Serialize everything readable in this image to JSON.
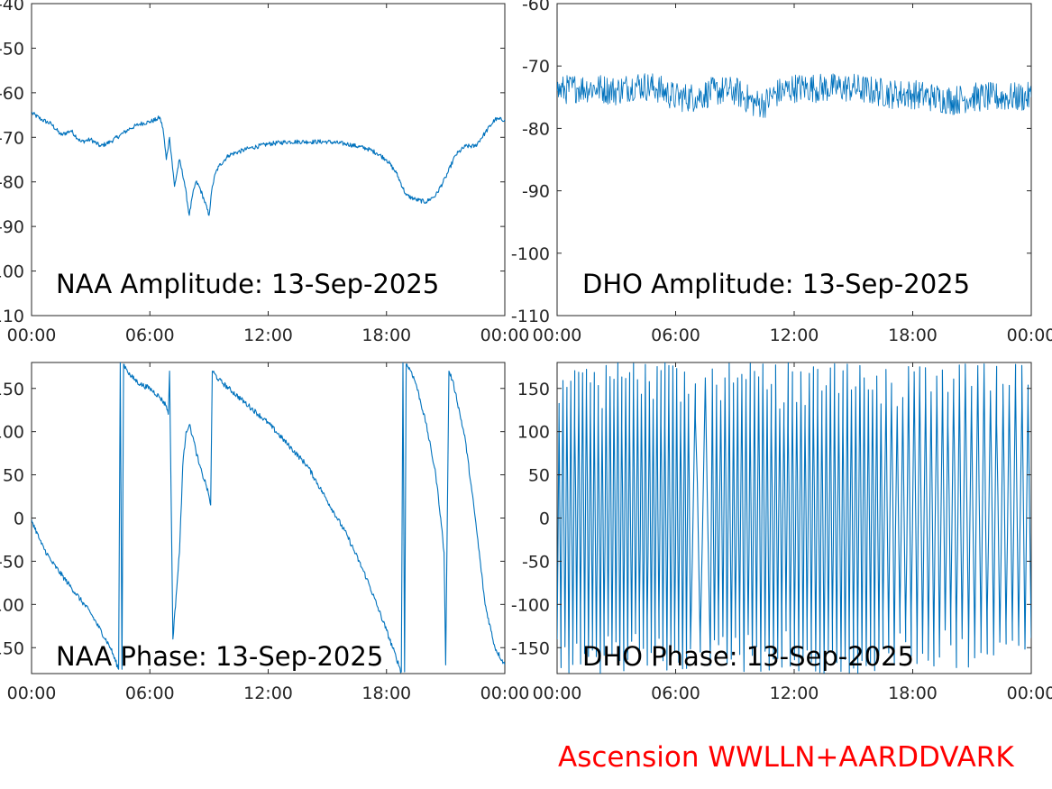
{
  "line_color": "#0072bd",
  "credit_color": "#ff0000",
  "credit": "Ascension WWLLN+AARDDVARK",
  "chart_data": [
    {
      "type": "line",
      "title": "NAA Amplitude: 13-Sep-2025",
      "xlabel": "",
      "ylabel": "",
      "xlim": [
        "00:00",
        "24:00"
      ],
      "ylim": [
        -110,
        -40
      ],
      "xtick_labels": [
        "00:00",
        "06:00",
        "12:00",
        "18:00",
        "00:00"
      ],
      "ytick_values": [
        -110,
        -100,
        -90,
        -80,
        -70,
        -60,
        -50,
        -40
      ],
      "ytick_labels": [
        "-110",
        "-100",
        "-90",
        "-80",
        "-70",
        "-60",
        "-50",
        "-40"
      ],
      "series": [
        {
          "noise": 0.5,
          "x": [
            "00:00",
            "00:30",
            "01:00",
            "01:30",
            "02:00",
            "02:30",
            "03:00",
            "03:30",
            "04:00",
            "04:30",
            "05:00",
            "05:30",
            "06:00",
            "06:20",
            "06:30",
            "06:40",
            "06:50",
            "07:00",
            "07:15",
            "07:30",
            "07:45",
            "08:00",
            "08:10",
            "08:20",
            "08:30",
            "08:45",
            "09:00",
            "09:10",
            "09:20",
            "09:30",
            "10:00",
            "11:00",
            "12:00",
            "13:00",
            "14:00",
            "15:00",
            "16:00",
            "17:00",
            "17:30",
            "18:00",
            "18:30",
            "19:00",
            "19:30",
            "20:00",
            "20:30",
            "21:00",
            "21:30",
            "22:00",
            "22:30",
            "23:00",
            "23:30",
            "24:00"
          ],
          "y": [
            -64.5,
            -66,
            -67,
            -69.5,
            -68.5,
            -71,
            -70.5,
            -72,
            -71,
            -69.5,
            -68,
            -67,
            -66.5,
            -66,
            -65.5,
            -68,
            -75,
            -70,
            -81,
            -75,
            -80,
            -87.5,
            -83,
            -80,
            -81,
            -84,
            -87.5,
            -81,
            -78,
            -76.5,
            -74,
            -72.5,
            -71.5,
            -71,
            -71,
            -71,
            -71.5,
            -72.5,
            -73.5,
            -75,
            -78,
            -83,
            -84,
            -84.5,
            -83,
            -79,
            -74,
            -72,
            -72,
            -69,
            -66,
            -66
          ]
        }
      ]
    },
    {
      "type": "line",
      "title": "DHO Amplitude: 13-Sep-2025",
      "xlabel": "",
      "ylabel": "",
      "xlim": [
        "00:00",
        "24:00"
      ],
      "ylim": [
        -110,
        -60
      ],
      "xtick_labels": [
        "00:00",
        "06:00",
        "12:00",
        "18:00",
        "00:00"
      ],
      "ytick_values": [
        -110,
        -100,
        -90,
        -80,
        -70,
        -60
      ],
      "ytick_labels": [
        "-110",
        "-100",
        "-90",
        "-80",
        "-70",
        "-60"
      ],
      "series": [
        {
          "noise": 2.4,
          "x": [
            "00:00",
            "01:00",
            "02:00",
            "03:00",
            "04:00",
            "05:00",
            "06:00",
            "07:00",
            "08:00",
            "09:00",
            "10:00",
            "10:30",
            "11:00",
            "12:00",
            "13:00",
            "14:00",
            "15:00",
            "16:00",
            "17:00",
            "18:00",
            "19:00",
            "20:00",
            "21:00",
            "22:00",
            "23:00",
            "24:00"
          ],
          "y": [
            -74,
            -73.5,
            -73.5,
            -74,
            -73,
            -73.5,
            -75,
            -75,
            -74,
            -74,
            -76,
            -76,
            -74.5,
            -73.5,
            -73.5,
            -73.5,
            -73.5,
            -74,
            -74.5,
            -74.5,
            -75,
            -75.5,
            -75,
            -75,
            -75,
            -75
          ]
        }
      ]
    },
    {
      "type": "line",
      "title": "NAA Phase: 13-Sep-2025",
      "xlabel": "",
      "ylabel": "",
      "xlim": [
        "00:00",
        "24:00"
      ],
      "ylim": [
        -180,
        180
      ],
      "xtick_labels": [
        "00:00",
        "06:00",
        "12:00",
        "18:00",
        "00:00"
      ],
      "ytick_values": [
        -150,
        -100,
        -50,
        0,
        50,
        100,
        150
      ],
      "ytick_labels": [
        "-150",
        "-100",
        "-50",
        "0",
        "50",
        "100",
        "150"
      ],
      "series": [
        {
          "noise": 3,
          "x": [
            "00:00",
            "00:30",
            "01:00",
            "02:00",
            "03:00",
            "04:00",
            "04:25",
            "04:30",
            "04:35",
            "04:40",
            "04:50",
            "05:00",
            "05:30",
            "06:00",
            "06:30",
            "06:50",
            "06:56",
            "07:00",
            "07:10",
            "07:30",
            "07:40",
            "07:50",
            "08:00",
            "08:10",
            "08:20",
            "08:30",
            "08:40",
            "08:50",
            "09:00",
            "09:05",
            "09:10",
            "09:30",
            "10:00",
            "11:00",
            "12:00",
            "13:00",
            "14:00",
            "15:00",
            "16:00",
            "17:00",
            "18:00",
            "18:45",
            "18:50",
            "18:55",
            "19:00",
            "19:15",
            "19:30",
            "20:00",
            "20:30",
            "20:45",
            "20:55",
            "21:00",
            "21:10",
            "21:20",
            "21:30",
            "22:00",
            "22:30",
            "23:00",
            "23:30",
            "24:00"
          ],
          "y": [
            -2,
            -30,
            -50,
            -80,
            -110,
            -150,
            -175,
            180,
            -175,
            178,
            172,
            165,
            155,
            150,
            140,
            130,
            120,
            170,
            -140,
            -40,
            60,
            100,
            108,
            95,
            78,
            62,
            50,
            40,
            25,
            15,
            170,
            160,
            150,
            130,
            110,
            85,
            60,
            20,
            -20,
            -70,
            -130,
            -178,
            180,
            -178,
            178,
            170,
            155,
            110,
            50,
            0,
            -40,
            -170,
            170,
            160,
            145,
            90,
            0,
            -100,
            -150,
            -170
          ]
        }
      ]
    },
    {
      "type": "line",
      "title": "DHO Phase: 13-Sep-2025",
      "xlabel": "",
      "ylabel": "",
      "xlim": [
        "00:00",
        "24:00"
      ],
      "ylim": [
        -180,
        180
      ],
      "xtick_labels": [
        "00:00",
        "06:00",
        "12:00",
        "18:00",
        "00:00"
      ],
      "ytick_values": [
        -150,
        -100,
        -50,
        0,
        50,
        100,
        150
      ],
      "ytick_labels": [
        "-150",
        "-100",
        "-50",
        "0",
        "50",
        "100",
        "150"
      ],
      "series": [
        {
          "wrap_segments": [
            {
              "x0": "00:00",
              "x1": "06:45",
              "cycles": 68
            },
            {
              "x0": "06:45",
              "x1": "07:45",
              "cycles": 4
            },
            {
              "x0": "07:45",
              "x1": "16:30",
              "cycles": 82
            },
            {
              "x0": "16:30",
              "x1": "20:30",
              "cycles": 28
            },
            {
              "x0": "20:30",
              "x1": "24:00",
              "cycles": 22
            }
          ]
        }
      ]
    }
  ]
}
